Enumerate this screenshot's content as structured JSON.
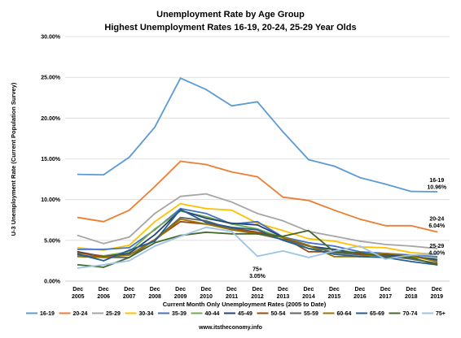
{
  "chart_data": {
    "type": "line",
    "title": "Unemployment Rate by Age Group",
    "subtitle": "Highest Unemployment Rates 16-19, 20-24, 25-29 Year Olds",
    "xlabel": "Current Month Only Unemployment Rates (2005 to Date)",
    "ylabel": "U-3 Unemployment Rate (Current Population Survey)",
    "ylim": [
      0,
      30
    ],
    "y_ticks": [
      "0.00%",
      "5.00%",
      "10.00%",
      "15.00%",
      "20.00%",
      "25.00%",
      "30.00%"
    ],
    "grid": true,
    "legend_position": "bottom",
    "categories": [
      [
        "Dec",
        "2005"
      ],
      [
        "Dec",
        "2006"
      ],
      [
        "Dec",
        "2007"
      ],
      [
        "Dec",
        "2008"
      ],
      [
        "Dec",
        "2009"
      ],
      [
        "Dec",
        "2010"
      ],
      [
        "Dec",
        "2011"
      ],
      [
        "Dec",
        "2012"
      ],
      [
        "Dec",
        "2013"
      ],
      [
        "Dec",
        "2014"
      ],
      [
        "Dec",
        "2015"
      ],
      [
        "Dec",
        "2016"
      ],
      [
        "Dec",
        "2017"
      ],
      [
        "Dec",
        "2018"
      ],
      [
        "Dec",
        "2019"
      ]
    ],
    "series": [
      {
        "name": "16-19",
        "color": "#5b9bd5",
        "values": [
          13.1,
          13.05,
          15.2,
          18.9,
          24.9,
          23.5,
          21.5,
          22.0,
          18.3,
          14.9,
          14.1,
          12.7,
          11.9,
          11.0,
          10.96
        ]
      },
      {
        "name": "20-24",
        "color": "#ed7d31",
        "values": [
          7.8,
          7.3,
          8.7,
          11.6,
          14.7,
          14.3,
          13.4,
          12.8,
          10.3,
          9.9,
          8.7,
          7.6,
          6.8,
          6.8,
          6.04
        ]
      },
      {
        "name": "25-29",
        "color": "#a5a5a5",
        "values": [
          5.6,
          4.6,
          5.4,
          8.3,
          10.4,
          10.7,
          9.7,
          8.3,
          7.4,
          6.1,
          5.5,
          4.9,
          4.5,
          4.3,
          4.0
        ]
      },
      {
        "name": "30-34",
        "color": "#ffc000",
        "values": [
          4.1,
          3.8,
          4.4,
          7.3,
          9.5,
          8.9,
          8.7,
          7.1,
          6.2,
          5.2,
          4.9,
          4.2,
          4.1,
          3.5,
          3.3
        ]
      },
      {
        "name": "35-39",
        "color": "#4472c4",
        "values": [
          3.9,
          3.9,
          4.1,
          6.3,
          8.9,
          8.3,
          7.0,
          7.3,
          5.4,
          4.7,
          4.3,
          3.6,
          3.4,
          3.2,
          3.0
        ]
      },
      {
        "name": "40-44",
        "color": "#70ad47",
        "values": [
          3.4,
          3.1,
          3.6,
          6.4,
          8.6,
          7.9,
          7.0,
          6.4,
          5.3,
          4.0,
          3.9,
          3.4,
          3.2,
          2.9,
          2.8
        ]
      },
      {
        "name": "45-49",
        "color": "#264478",
        "values": [
          3.6,
          3.0,
          3.4,
          5.7,
          8.7,
          7.7,
          7.1,
          6.9,
          5.4,
          4.3,
          3.9,
          3.3,
          3.2,
          3.1,
          2.6
        ]
      },
      {
        "name": "50-54",
        "color": "#9e480e",
        "values": [
          3.5,
          3.0,
          3.2,
          5.1,
          7.3,
          7.0,
          6.5,
          6.0,
          5.4,
          3.6,
          3.6,
          3.4,
          3.0,
          2.8,
          2.1
        ]
      },
      {
        "name": "55-59",
        "color": "#636363",
        "values": [
          3.2,
          2.9,
          2.9,
          5.1,
          7.8,
          7.4,
          6.4,
          5.8,
          5.1,
          4.3,
          3.5,
          3.2,
          3.1,
          2.7,
          2.2
        ]
      },
      {
        "name": "60-64",
        "color": "#997300",
        "values": [
          3.0,
          2.9,
          3.2,
          5.0,
          7.6,
          7.0,
          6.3,
          5.8,
          5.4,
          4.4,
          3.0,
          3.0,
          3.4,
          3.1,
          2.4
        ]
      },
      {
        "name": "65-69",
        "color": "#255e91",
        "values": [
          3.3,
          2.5,
          3.8,
          4.9,
          8.8,
          7.2,
          6.6,
          6.3,
          5.0,
          4.0,
          3.3,
          3.0,
          2.9,
          2.4,
          2.0
        ]
      },
      {
        "name": "70-74",
        "color": "#43682b",
        "values": [
          2.0,
          1.7,
          2.9,
          4.7,
          5.6,
          6.0,
          5.8,
          5.8,
          5.5,
          6.2,
          3.6,
          3.5,
          3.0,
          2.9,
          2.0
        ]
      },
      {
        "name": "75+",
        "color": "#9dc3e6",
        "values": [
          1.6,
          2.0,
          2.5,
          4.3,
          5.5,
          6.6,
          6.1,
          3.05,
          3.7,
          2.9,
          3.7,
          4.3,
          2.7,
          3.2,
          3.3
        ]
      }
    ],
    "annotations": [
      {
        "series": "16-19",
        "lines": [
          "16-19",
          "10.96%"
        ],
        "color": "#000000"
      },
      {
        "series": "20-24",
        "lines": [
          "20-24",
          "6.04%"
        ],
        "color": "#000000"
      },
      {
        "series": "25-29",
        "lines": [
          "25-29",
          "4.00%"
        ],
        "color": "#000000"
      },
      {
        "series": "75+",
        "lines": [
          "75+",
          "3.05%"
        ],
        "color": "#ffffff"
      }
    ]
  },
  "footer": {
    "source": "www.itstheconomy.info"
  }
}
